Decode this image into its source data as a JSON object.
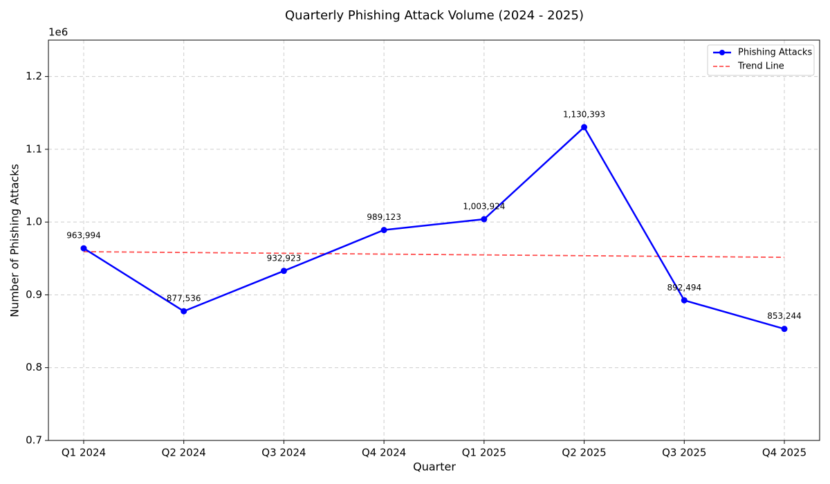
{
  "chart_data": {
    "type": "line",
    "title": "Quarterly Phishing Attack Volume (2024 - 2025)",
    "x_label": "Quarter",
    "y_label": "Number of Phishing Attacks",
    "y_offset_label": "1e6",
    "categories": [
      "Q1 2024",
      "Q2 2024",
      "Q3 2024",
      "Q4 2024",
      "Q1 2025",
      "Q2 2025",
      "Q3 2025",
      "Q4 2025"
    ],
    "series": [
      {
        "name": "Phishing Attacks",
        "color": "#0000ff",
        "line_style": "solid",
        "marker": true,
        "values": [
          963994,
          877536,
          932923,
          989123,
          1003924,
          1130393,
          892494,
          853244
        ],
        "value_labels": [
          "963,994",
          "877,536",
          "932,923",
          "989,123",
          "1,003,924",
          "1,130,393",
          "892,494",
          "853,244"
        ]
      },
      {
        "name": "Trend Line",
        "color": "#ff4d4d",
        "line_style": "dashed",
        "marker": false,
        "values": [
          959339,
          958229,
          957119,
          956009,
          954899,
          953789,
          952679,
          951569
        ]
      }
    ],
    "ylim": [
      700000,
      1250000
    ],
    "yticks": [
      {
        "value": 700000,
        "label": "0.7"
      },
      {
        "value": 800000,
        "label": "0.8"
      },
      {
        "value": 900000,
        "label": "0.9"
      },
      {
        "value": 1000000,
        "label": "1.0"
      },
      {
        "value": 1100000,
        "label": "1.1"
      },
      {
        "value": 1200000,
        "label": "1.2"
      }
    ],
    "grid": true,
    "legend": "upper right"
  }
}
